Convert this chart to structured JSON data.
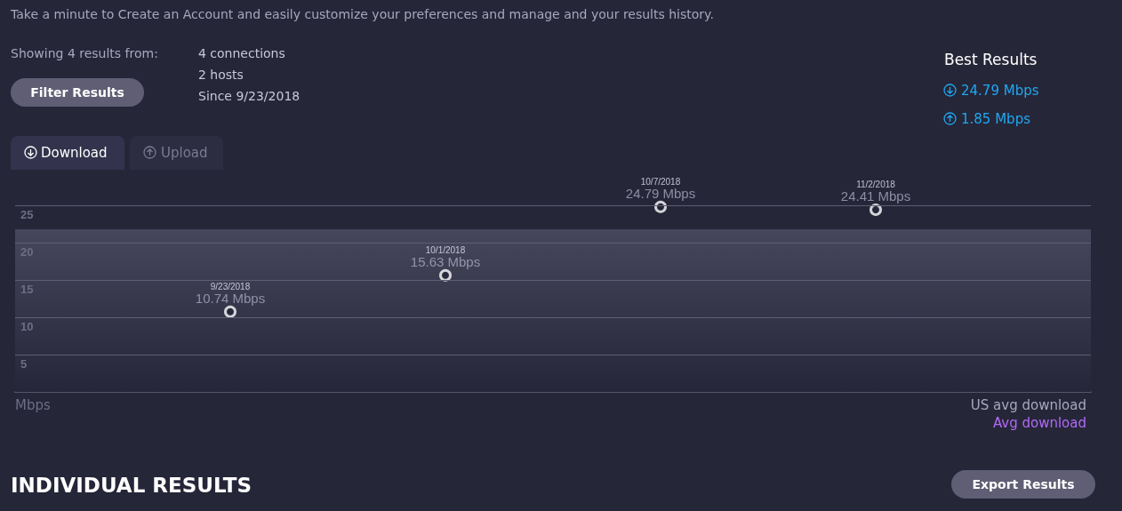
{
  "chart_data": {
    "type": "scatter",
    "title": "Download",
    "categories": [
      null,
      null,
      null,
      null
    ],
    "series": [
      {
        "color": "#ffffff",
        "values": [
          10.74,
          15.63,
          24.79,
          24.41
        ],
        "value_labels": [
          "9/23/2018\n10.74 Mbps",
          "10/1/2018\n15.63 Mbps",
          "10/7/2018\n24.79 Mbps",
          "11/2/2018\n24.41 Mbps"
        ]
      }
    ],
    "ylim": [
      0,
      25
    ],
    "yticks": [
      5,
      10,
      15,
      20,
      25
    ],
    "grid": "y",
    "marker": "circle",
    "bands": [
      {
        "axis": "y",
        "from": 0,
        "to": 21.8,
        "label": "US avg download",
        "color": "#46465c"
      }
    ],
    "annotations": [
      "Take a minute to Create an Account and easily customize your preferences and manage and your results history.",
      "Showing 4 results from:",
      "4 connections",
      "2 hosts",
      "Since 9/23/2018",
      "Filter Results",
      "Upload",
      "Best Results",
      "24.79 Mbps",
      "1.85 Mbps",
      "Avg download",
      "INDIVIDUAL RESULTS",
      "Export Results",
      "Mbps"
    ]
  }
}
